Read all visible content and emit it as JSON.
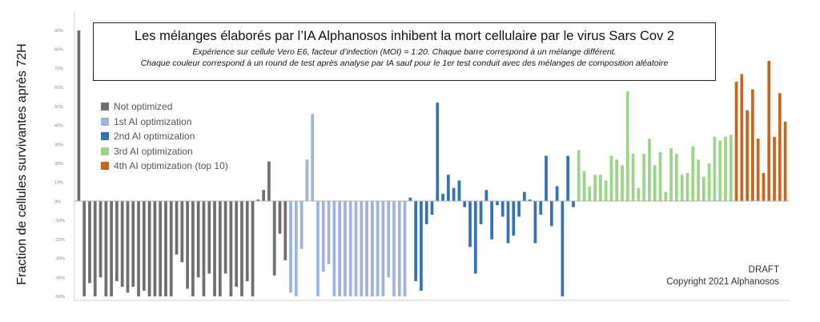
{
  "y_axis_label": "Fraction de cellules survivantes après 72H",
  "notice": {
    "draft": "DRAFT",
    "copyright": "Copyright 2021 Alphanosos"
  },
  "chart_data": {
    "type": "bar",
    "title": "Les mélanges élaborés par l’IA Alphanosos inhibent la mort cellulaire par le virus Sars Cov 2",
    "subtitle_1": "Expérience sur cellule Vero E6, facteur d’infection (MOI) = 1:20. Chaque barre correspond à un mélange différent.",
    "subtitle_2": "Chaque couleur correspond à un round de test après analyse par IA sauf pour le 1er test conduit avec des mélanges de composition aléatoire",
    "ylabel": "Fraction de cellules survivantes après 72H",
    "y_ticks": [
      "-50%",
      "-40%",
      "-30%",
      "-20%",
      "-10%",
      "0%",
      "10%",
      "20%",
      "30%",
      "40%",
      "50%",
      "60%",
      "70%",
      "80%",
      "90%"
    ],
    "ylim": [
      -50,
      90
    ],
    "grid": false,
    "legend_position": "left",
    "series": [
      {
        "name": "Not optimized",
        "color": "#6f6f6f",
        "values": [
          90,
          -50,
          -43,
          -50,
          -40,
          -50,
          -50,
          -42,
          -45,
          -48,
          -45,
          -50,
          -47,
          -50,
          -50,
          -50,
          -50,
          -50,
          -28,
          -32,
          -46,
          -50,
          -40,
          -50,
          -38,
          -50,
          -50,
          -38,
          -50,
          -45,
          -50,
          -42,
          -50,
          1,
          6,
          21,
          -39,
          -17,
          -31
        ]
      },
      {
        "name": "1st AI optimization",
        "color": "#9fb3e0",
        "values": [
          -48,
          -50,
          -25,
          22,
          46,
          -50,
          -37,
          -33,
          -50,
          -50,
          -50,
          -50,
          -50,
          -50,
          -50,
          -50,
          -50,
          -50,
          -40,
          -50,
          -50,
          -50
        ]
      },
      {
        "name": "2nd AI optimization",
        "color": "#3572b5",
        "values": [
          2,
          -42,
          -47,
          -12,
          -7,
          52,
          4,
          14,
          7,
          11,
          -3,
          -24,
          -38,
          -12,
          6,
          -20,
          -2,
          -8,
          -22,
          -18,
          -8,
          5,
          1,
          -22,
          -7,
          24,
          -13,
          8,
          -50,
          24,
          -3
        ]
      },
      {
        "name": "3rd AI optimization",
        "color": "#9ed38a",
        "values": [
          27,
          16,
          8,
          14,
          14,
          11,
          24,
          22,
          19,
          58,
          25,
          7,
          25,
          33,
          19,
          26,
          5,
          28,
          25,
          14,
          15,
          29,
          22,
          13,
          20,
          34,
          32,
          34,
          35
        ]
      },
      {
        "name": "4th AI optimization (top 10)",
        "color": "#c8641e",
        "values": [
          63,
          67,
          48,
          59,
          33,
          15,
          74,
          34,
          57,
          42
        ]
      }
    ]
  }
}
